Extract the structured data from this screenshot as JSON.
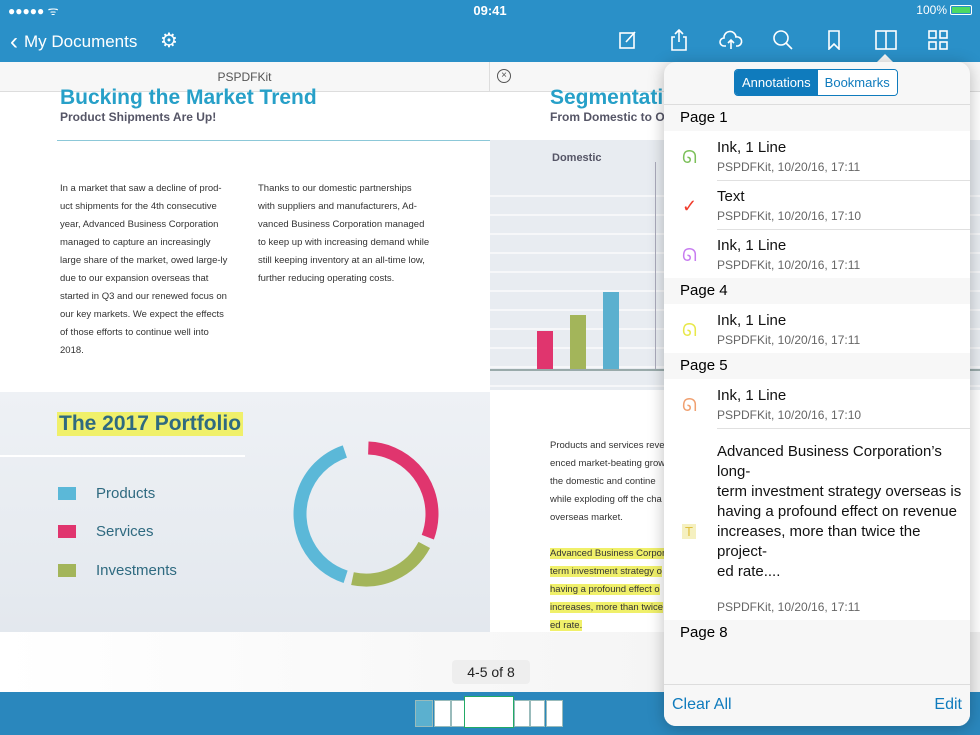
{
  "status": {
    "signal": "●●●●● ᯤ",
    "time": "09:41",
    "battery": "100%"
  },
  "nav": {
    "back_label": "My Documents",
    "icons": [
      "settings-icon",
      "annotate-icon",
      "share-icon",
      "cloud-upload-icon",
      "search-icon",
      "bookmark-icon",
      "outline-icon",
      "thumbnails-icon"
    ]
  },
  "tabs": {
    "left": "PSPDFKit",
    "close": "×"
  },
  "left_page": {
    "title": "Bucking the Market Trend",
    "subtitle": "Product Shipments Are Up!",
    "col1": "In a market that saw a decline of prod-uct shipments for the 4th consecutive year, Advanced Business Corporation managed to capture an increasingly large share of the market, owed large-ly due to our expansion overseas that started in Q3 and our renewed focus on our key markets. We expect the effects of those efforts to continue well into 2018.",
    "col2": "Thanks to our domestic partnerships with suppliers and manufacturers, Ad-vanced Business Corporation managed to keep up with increasing demand while still keeping inventory at an all-time low, further reducing operating costs.",
    "portfolio_title": "The 2017 Portfolio",
    "legend": [
      {
        "label": "Products",
        "color": "#5bb8d8"
      },
      {
        "label": "Services",
        "color": "#e0356e"
      },
      {
        "label": "Investments",
        "color": "#a3b55a"
      }
    ]
  },
  "right_page": {
    "title": "Segmentati",
    "subtitle": "From Domestic to Ov",
    "chart_label": "Domestic",
    "bars": [
      {
        "color": "#e0356e",
        "value": 38
      },
      {
        "color": "#a3b55a",
        "value": 54
      },
      {
        "color": "#5bb0cf",
        "value": 77
      }
    ],
    "para": [
      "Products and services reve",
      "enced market-beating grow",
      "the domestic and contine",
      "while exploding off the cha",
      "overseas market."
    ],
    "highlight": [
      "Advanced Business Corpor",
      "term investment strategy o",
      "having a profound effect o",
      "increases, more than twice",
      "ed rate."
    ]
  },
  "page_label": "4-5 of 8",
  "popover": {
    "segments": [
      "Annotations",
      "Bookmarks"
    ],
    "active_segment": "Annotations",
    "sections": [
      {
        "title": "Page 1",
        "items": [
          {
            "icon": "ink-icon",
            "color": "#7cc05a",
            "title": "Ink, 1 Line",
            "meta": "PSPDFKit, 10/20/16, 17:11"
          },
          {
            "icon": "checkmark-icon",
            "color": "#f03c2c",
            "title": "Text",
            "meta": "PSPDFKit, 10/20/16, 17:10"
          },
          {
            "icon": "ink-icon",
            "color": "#c77cf0",
            "title": "Ink, 1 Line",
            "meta": "PSPDFKit, 10/20/16, 17:11"
          }
        ]
      },
      {
        "title": "Page 4",
        "items": [
          {
            "icon": "ink-icon",
            "color": "#e8e84a",
            "title": "Ink, 1 Line",
            "meta": "PSPDFKit, 10/20/16, 17:11"
          }
        ]
      },
      {
        "title": "Page 5",
        "items": [
          {
            "icon": "ink-icon",
            "color": "#f0a070",
            "title": "Ink, 1 Line",
            "meta": "PSPDFKit, 10/20/16, 17:10"
          },
          {
            "icon": "highlight-text-icon",
            "color": "#e0c040",
            "title": "Advanced Business Corporation’s long-\nterm investment strategy overseas is\nhaving a profound effect on revenue\nincreases, more than twice the project-\ned rate....",
            "meta": "PSPDFKit, 10/20/16, 17:11"
          }
        ]
      },
      {
        "title": "Page 8",
        "items": []
      }
    ],
    "clear_all": "Clear All",
    "edit": "Edit"
  }
}
